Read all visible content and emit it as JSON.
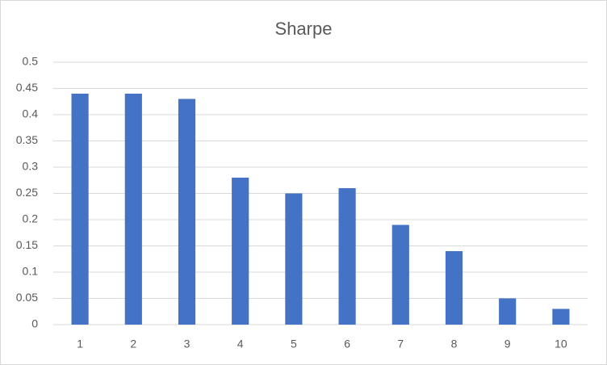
{
  "chart_data": {
    "type": "bar",
    "title": "Sharpe",
    "categories": [
      "1",
      "2",
      "3",
      "4",
      "5",
      "6",
      "7",
      "8",
      "9",
      "10"
    ],
    "values": [
      0.44,
      0.44,
      0.43,
      0.28,
      0.25,
      0.26,
      0.19,
      0.14,
      0.05,
      0.03
    ],
    "color": "#4472c4",
    "ylim": [
      0,
      0.5
    ],
    "yticks": [
      0,
      0.05,
      0.1,
      0.15,
      0.2,
      0.25,
      0.3,
      0.35,
      0.4,
      0.45,
      0.5
    ],
    "grid": true
  }
}
